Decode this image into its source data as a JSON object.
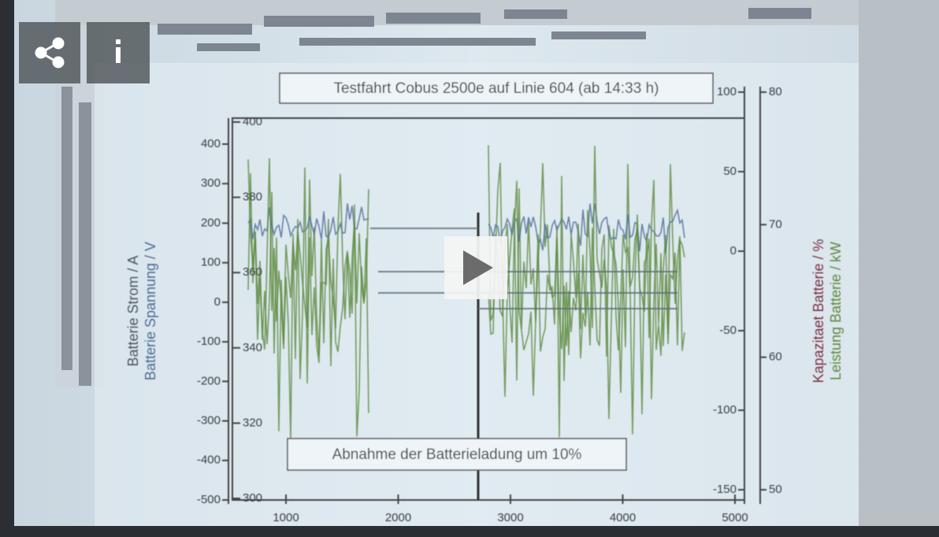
{
  "screen": {
    "title": "Testfahrt Cobus 2500e auf Linie 604 (ab 14:33 h)",
    "annotation": "Abnahme der Batterieladung um 10%",
    "left_axis_labels": [
      "Batterie Strom / A",
      "Batterie Spannung / V"
    ],
    "right_axis_labels": [
      "Kapazitaet Batterie / %",
      "Leistung Batterie / kW"
    ],
    "current_ticks": [
      400,
      300,
      200,
      100,
      0,
      -100,
      -200,
      -300,
      -400,
      -500
    ],
    "voltage_ticks": [
      400,
      380,
      360,
      340,
      320,
      300
    ],
    "power_ticks": [
      100,
      50,
      0,
      -50,
      -100,
      -150
    ],
    "capacity_ticks": [
      80,
      70,
      60,
      50
    ],
    "time_ticks": [
      1000,
      2000,
      3000,
      4000,
      5000
    ]
  }
}
